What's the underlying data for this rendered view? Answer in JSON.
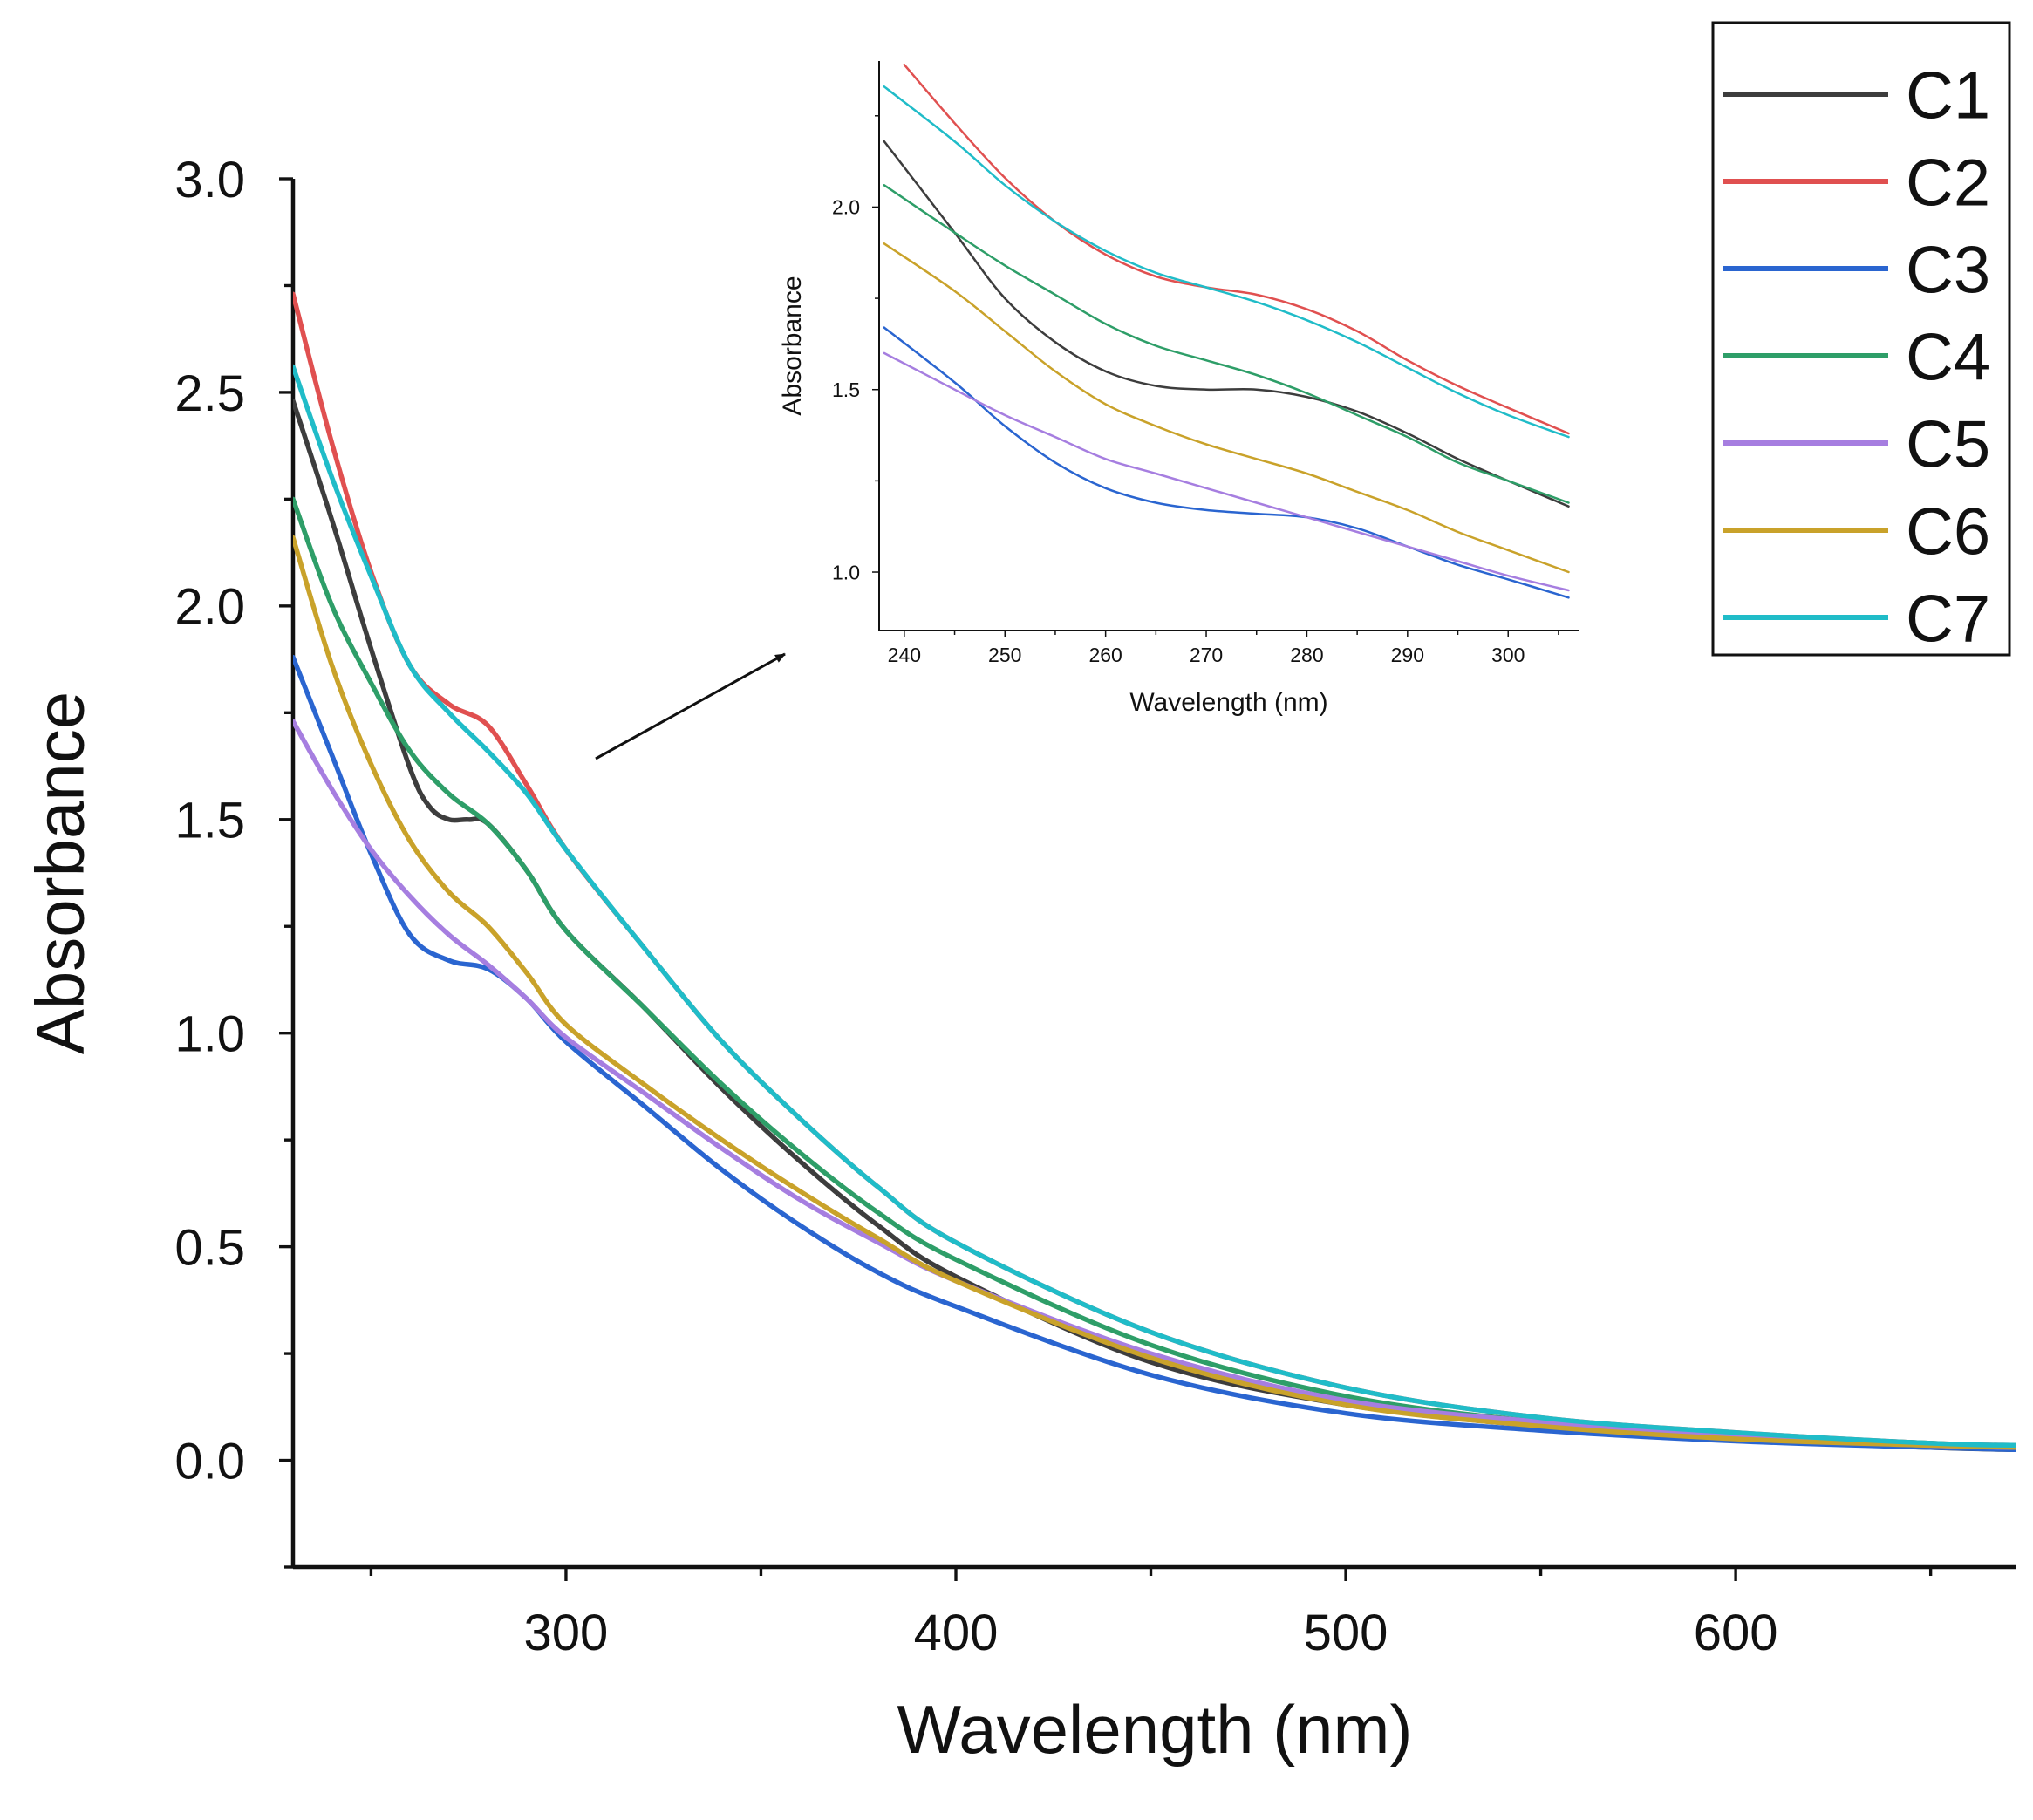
{
  "chart_data": [
    {
      "id": "main",
      "type": "line",
      "title": "",
      "xlabel": "Wavelength (nm)",
      "ylabel": "Absorbance",
      "xlim": [
        230,
        672
      ],
      "ylim": [
        -0.25,
        3.0
      ],
      "xticks": [
        300,
        400,
        500,
        600
      ],
      "xtick_labels": [
        "300",
        "400",
        "500",
        "600"
      ],
      "yticks": [
        0.0,
        0.5,
        1.0,
        1.5,
        2.0,
        2.5,
        3.0
      ],
      "ytick_labels": [
        "0.0",
        "0.5",
        "1.0",
        "1.5",
        "2.0",
        "2.5",
        "3.0"
      ],
      "grid": false,
      "legend": "top-right",
      "series": [
        {
          "name": "C1",
          "color": "#3d3d3d",
          "x": [
            230,
            240,
            250,
            260,
            265,
            270,
            275,
            280,
            290,
            300,
            320,
            340,
            360,
            380,
            400,
            450,
            500,
            550,
            600,
            650,
            672
          ],
          "y": [
            2.48,
            2.2,
            1.9,
            1.62,
            1.53,
            1.5,
            1.5,
            1.49,
            1.38,
            1.24,
            1.06,
            0.87,
            0.7,
            0.55,
            0.43,
            0.23,
            0.13,
            0.08,
            0.05,
            0.03,
            0.025
          ]
        },
        {
          "name": "C2",
          "color": "#e05050",
          "x": [
            230,
            240,
            250,
            260,
            270,
            280,
            290,
            300,
            320,
            340,
            360,
            380,
            400,
            450,
            500,
            550,
            600,
            650,
            672
          ],
          "y": [
            2.73,
            2.38,
            2.08,
            1.86,
            1.77,
            1.72,
            1.58,
            1.43,
            1.2,
            0.98,
            0.8,
            0.64,
            0.51,
            0.3,
            0.17,
            0.1,
            0.065,
            0.04,
            0.035
          ]
        },
        {
          "name": "C3",
          "color": "#2a65d0",
          "x": [
            230,
            240,
            250,
            260,
            270,
            280,
            290,
            300,
            320,
            340,
            360,
            380,
            400,
            450,
            500,
            550,
            600,
            650,
            672
          ],
          "y": [
            1.88,
            1.65,
            1.42,
            1.23,
            1.17,
            1.15,
            1.08,
            0.98,
            0.83,
            0.68,
            0.55,
            0.44,
            0.36,
            0.2,
            0.11,
            0.07,
            0.045,
            0.03,
            0.025
          ]
        },
        {
          "name": "C4",
          "color": "#2e9e68",
          "x": [
            230,
            240,
            250,
            260,
            270,
            280,
            290,
            300,
            320,
            340,
            360,
            380,
            400,
            450,
            500,
            550,
            600,
            650,
            672
          ],
          "y": [
            2.25,
            2.0,
            1.82,
            1.66,
            1.56,
            1.49,
            1.38,
            1.24,
            1.06,
            0.88,
            0.72,
            0.58,
            0.47,
            0.27,
            0.15,
            0.09,
            0.06,
            0.04,
            0.03
          ]
        },
        {
          "name": "C5",
          "color": "#a67ee0",
          "x": [
            230,
            240,
            250,
            260,
            270,
            280,
            290,
            300,
            320,
            340,
            360,
            380,
            400,
            450,
            500,
            550,
            600,
            650,
            672
          ],
          "y": [
            1.73,
            1.57,
            1.43,
            1.32,
            1.23,
            1.16,
            1.08,
            0.99,
            0.86,
            0.73,
            0.61,
            0.51,
            0.42,
            0.25,
            0.14,
            0.09,
            0.06,
            0.035,
            0.03
          ]
        },
        {
          "name": "C6",
          "color": "#c9a22a",
          "x": [
            230,
            240,
            250,
            260,
            270,
            280,
            290,
            300,
            320,
            340,
            360,
            380,
            400,
            450,
            500,
            550,
            600,
            650,
            672
          ],
          "y": [
            2.16,
            1.86,
            1.63,
            1.45,
            1.33,
            1.25,
            1.14,
            1.02,
            0.88,
            0.75,
            0.63,
            0.52,
            0.42,
            0.24,
            0.13,
            0.08,
            0.05,
            0.035,
            0.03
          ]
        },
        {
          "name": "C7",
          "color": "#20bcc8",
          "x": [
            230,
            240,
            250,
            260,
            270,
            280,
            290,
            300,
            320,
            340,
            360,
            380,
            400,
            450,
            500,
            550,
            600,
            650,
            672
          ],
          "y": [
            2.56,
            2.3,
            2.07,
            1.86,
            1.75,
            1.66,
            1.56,
            1.43,
            1.2,
            0.98,
            0.8,
            0.64,
            0.51,
            0.3,
            0.17,
            0.1,
            0.065,
            0.04,
            0.035
          ]
        }
      ]
    },
    {
      "id": "inset",
      "type": "line",
      "title": "",
      "xlabel": "Wavelength (nm)",
      "ylabel": "Absorbance",
      "xlim": [
        237.5,
        307
      ],
      "ylim": [
        0.84,
        2.4
      ],
      "xticks": [
        240,
        250,
        260,
        270,
        280,
        290,
        300
      ],
      "xtick_labels": [
        "240",
        "250",
        "260",
        "270",
        "280",
        "290",
        "300"
      ],
      "yticks": [
        1.0,
        1.5,
        2.0
      ],
      "ytick_labels": [
        "1.0",
        "1.5",
        "2.0"
      ],
      "grid": false,
      "series": [
        {
          "name": "C1",
          "color": "#3d3d3d",
          "x": [
            238,
            245,
            250,
            255,
            260,
            265,
            270,
            275,
            280,
            285,
            290,
            295,
            300,
            306
          ],
          "y": [
            2.18,
            1.93,
            1.75,
            1.63,
            1.55,
            1.51,
            1.5,
            1.5,
            1.48,
            1.44,
            1.38,
            1.31,
            1.25,
            1.18
          ]
        },
        {
          "name": "C2",
          "color": "#e05050",
          "x": [
            240,
            245,
            250,
            255,
            260,
            265,
            270,
            275,
            280,
            285,
            290,
            295,
            300,
            306
          ],
          "y": [
            2.39,
            2.23,
            2.08,
            1.96,
            1.87,
            1.81,
            1.78,
            1.76,
            1.72,
            1.66,
            1.58,
            1.51,
            1.45,
            1.38
          ]
        },
        {
          "name": "C3",
          "color": "#2a65d0",
          "x": [
            238,
            245,
            250,
            255,
            260,
            265,
            270,
            275,
            280,
            285,
            290,
            295,
            300,
            306
          ],
          "y": [
            1.67,
            1.52,
            1.4,
            1.3,
            1.23,
            1.19,
            1.17,
            1.16,
            1.15,
            1.12,
            1.07,
            1.02,
            0.98,
            0.93
          ]
        },
        {
          "name": "C4",
          "color": "#2e9e68",
          "x": [
            238,
            245,
            250,
            255,
            260,
            265,
            270,
            275,
            280,
            285,
            290,
            295,
            300,
            306
          ],
          "y": [
            2.06,
            1.93,
            1.84,
            1.76,
            1.68,
            1.62,
            1.58,
            1.54,
            1.49,
            1.43,
            1.37,
            1.3,
            1.25,
            1.19
          ]
        },
        {
          "name": "C5",
          "color": "#a67ee0",
          "x": [
            238,
            245,
            250,
            255,
            260,
            265,
            270,
            275,
            280,
            285,
            290,
            295,
            300,
            306
          ],
          "y": [
            1.6,
            1.5,
            1.43,
            1.37,
            1.31,
            1.27,
            1.23,
            1.19,
            1.15,
            1.11,
            1.07,
            1.03,
            0.99,
            0.95
          ]
        },
        {
          "name": "C6",
          "color": "#c9a22a",
          "x": [
            238,
            245,
            250,
            255,
            260,
            265,
            270,
            275,
            280,
            285,
            290,
            295,
            300,
            306
          ],
          "y": [
            1.9,
            1.77,
            1.66,
            1.55,
            1.46,
            1.4,
            1.35,
            1.31,
            1.27,
            1.22,
            1.17,
            1.11,
            1.06,
            1.0
          ]
        },
        {
          "name": "C7",
          "color": "#20bcc8",
          "x": [
            238,
            245,
            250,
            255,
            260,
            265,
            270,
            275,
            280,
            285,
            290,
            295,
            300,
            306
          ],
          "y": [
            2.33,
            2.18,
            2.06,
            1.96,
            1.88,
            1.82,
            1.78,
            1.74,
            1.69,
            1.63,
            1.56,
            1.49,
            1.43,
            1.37
          ]
        }
      ]
    }
  ],
  "legend": {
    "entries": [
      {
        "label": "C1",
        "color": "#3d3d3d"
      },
      {
        "label": "C2",
        "color": "#e05050"
      },
      {
        "label": "C3",
        "color": "#2a65d0"
      },
      {
        "label": "C4",
        "color": "#2e9e68"
      },
      {
        "label": "C5",
        "color": "#a67ee0"
      },
      {
        "label": "C6",
        "color": "#c9a22a"
      },
      {
        "label": "C7",
        "color": "#20bcc8"
      }
    ]
  },
  "annotations": [
    {
      "type": "arrow",
      "meaning": "zoom-callout",
      "from": "main-curve-shoulder",
      "to": "inset"
    }
  ]
}
